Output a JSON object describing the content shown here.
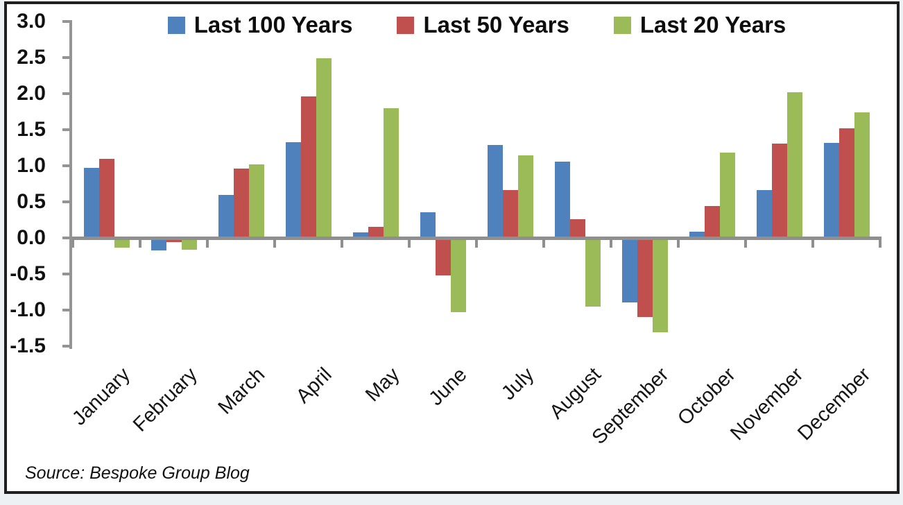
{
  "chart_data": {
    "type": "bar",
    "title": "",
    "categories": [
      "January",
      "February",
      "March",
      "April",
      "May",
      "June",
      "July",
      "August",
      "September",
      "October",
      "November",
      "December"
    ],
    "series": [
      {
        "name": "Last 100 Years",
        "color": "#4F81BD",
        "values": [
          0.97,
          -0.17,
          0.6,
          1.33,
          0.08,
          0.36,
          1.29,
          1.06,
          -0.89,
          0.09,
          0.66,
          1.32
        ]
      },
      {
        "name": "Last 50 Years",
        "color": "#C0504D",
        "values": [
          1.1,
          -0.06,
          0.96,
          1.96,
          0.15,
          -0.52,
          0.66,
          0.26,
          -1.1,
          0.44,
          1.31,
          1.52
        ]
      },
      {
        "name": "Last 20 Years",
        "color": "#9BBB59",
        "values": [
          -0.13,
          -0.16,
          1.02,
          2.49,
          1.8,
          -1.03,
          1.14,
          -0.95,
          -1.31,
          1.18,
          2.02,
          1.74
        ]
      }
    ],
    "ylim": [
      -1.5,
      3.0
    ],
    "ytick_labels": [
      "3.0",
      "2.5",
      "2.0",
      "1.5",
      "1.0",
      "0.5",
      "0.0",
      "-0.5",
      "-1.0",
      "-1.5"
    ],
    "ytick_values": [
      3.0,
      2.5,
      2.0,
      1.5,
      1.0,
      0.5,
      0.0,
      -0.5,
      -1.0,
      -1.5
    ],
    "legend_position": "top",
    "grid": false,
    "axis_color": "#949494",
    "source_note": "Source: Bespoke Group Blog"
  }
}
